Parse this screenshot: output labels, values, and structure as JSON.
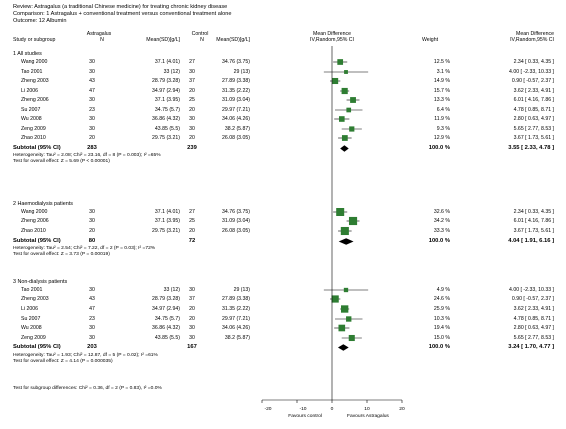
{
  "meta": {
    "review": "Review:   Astragalus (a traditional Chinese medicine) for treating chronic kidney disease",
    "comparison": "Comparison:   1 Astragalus + conventional treatment versus conventional treatment alone",
    "outcome": "Outcome:   12 Albumin"
  },
  "header": {
    "study": "Study or subgroup",
    "exp_group": "Astragalus",
    "ctl_group": "Control",
    "n": "N",
    "meansd": "Mean(SD)[g/L]",
    "md_line1": "Mean Difference",
    "md_line2": "IV,Random,95% CI",
    "weight": "Weight",
    "md2_line1": "Mean Difference",
    "md2_line2": "IV,Random,95% CI"
  },
  "axis": {
    "ticks": [
      "-20",
      "-10",
      "0",
      "10",
      "20"
    ],
    "left_label": "Favours control",
    "right_label": "Favours Astragalus"
  },
  "overall_note": "Test for subgroup differences: Chi² = 0.36, df = 2 (P = 0.83), I² =0.0%",
  "colors": {
    "square": "#2e7d32",
    "diamond": "#000000"
  },
  "chart_data": {
    "type": "forest",
    "xlim": [
      -20,
      20
    ],
    "subgroups": [
      {
        "title": "1 All studies",
        "studies": [
          {
            "name": "Wang 2000",
            "n1": "30",
            "ms1": "37.1 (4.01)",
            "n2": "27",
            "ms2": "34.76 (3.75)",
            "weight": "12.5 %",
            "ci": "2.34 [ 0.33, 4.35 ]",
            "md": 2.34,
            "lo": 0.33,
            "hi": 4.35
          },
          {
            "name": "Tao 2001",
            "n1": "30",
            "ms1": "33 (12)",
            "n2": "30",
            "ms2": "29 (13)",
            "weight": "3.1 %",
            "ci": "4.00 [ -2.33, 10.33 ]",
            "md": 4.0,
            "lo": -2.33,
            "hi": 10.33
          },
          {
            "name": "Zheng 2003",
            "n1": "43",
            "ms1": "28.79 (3.28)",
            "n2": "37",
            "ms2": "27.89 (3.38)",
            "weight": "14.9 %",
            "ci": "0.90 [ -0.57, 2.37 ]",
            "md": 0.9,
            "lo": -0.57,
            "hi": 2.37
          },
          {
            "name": "Li 2006",
            "n1": "47",
            "ms1": "34.97 (2.94)",
            "n2": "20",
            "ms2": "31.35 (2.22)",
            "weight": "15.7 %",
            "ci": "3.62 [ 2.33, 4.91 ]",
            "md": 3.62,
            "lo": 2.33,
            "hi": 4.91
          },
          {
            "name": "Zheng 2006",
            "n1": "30",
            "ms1": "37.1 (3.95)",
            "n2": "25",
            "ms2": "31.09 (3.04)",
            "weight": "13.3 %",
            "ci": "6.01 [ 4.16, 7.86 ]",
            "md": 6.01,
            "lo": 4.16,
            "hi": 7.86
          },
          {
            "name": "Su 2007",
            "n1": "23",
            "ms1": "34.75 (5.7)",
            "n2": "20",
            "ms2": "29.97 (7.21)",
            "weight": "6.4 %",
            "ci": "4.78 [ 0.85, 8.71 ]",
            "md": 4.78,
            "lo": 0.85,
            "hi": 8.71
          },
          {
            "name": "Wu 2008",
            "n1": "30",
            "ms1": "36.86 (4.32)",
            "n2": "30",
            "ms2": "34.06 (4.26)",
            "weight": "11.9 %",
            "ci": "2.80 [ 0.63, 4.97 ]",
            "md": 2.8,
            "lo": 0.63,
            "hi": 4.97
          },
          {
            "name": "Zeng 2009",
            "n1": "30",
            "ms1": "43.85 (5.5)",
            "n2": "30",
            "ms2": "38.2 (5.87)",
            "weight": "9.3 %",
            "ci": "5.65 [ 2.77, 8.53 ]",
            "md": 5.65,
            "lo": 2.77,
            "hi": 8.53
          },
          {
            "name": "Zhao 2010",
            "n1": "20",
            "ms1": "29.75 (3.21)",
            "n2": "20",
            "ms2": "26.08 (3.05)",
            "weight": "12.9 %",
            "ci": "3.67 [ 1.73, 5.61 ]",
            "md": 3.67,
            "lo": 1.73,
            "hi": 5.61
          }
        ],
        "subtotal": {
          "label": "Subtotal (95% CI)",
          "n1": "283",
          "n2": "239",
          "weight": "100.0 %",
          "ci": "3.55 [ 2.33, 4.78 ]",
          "md": 3.55,
          "lo": 2.33,
          "hi": 4.78
        },
        "het": "Heterogeneity: Tau² = 2.08; Chi² = 23.16, df = 8 (P = 0.003); I² =65%",
        "test": "Test for overall effect: Z = 5.69 (P < 0.00001)"
      },
      {
        "title": "2 Haemodialysis patients",
        "studies": [
          {
            "name": "Wang 2000",
            "n1": "30",
            "ms1": "37.1 (4.01)",
            "n2": "27",
            "ms2": "34.76 (3.75)",
            "weight": "32.6 %",
            "ci": "2.34 [ 0.33, 4.35 ]",
            "md": 2.34,
            "lo": 0.33,
            "hi": 4.35
          },
          {
            "name": "Zheng 2006",
            "n1": "30",
            "ms1": "37.1 (3.95)",
            "n2": "25",
            "ms2": "31.09 (3.04)",
            "weight": "34.2 %",
            "ci": "6.01 [ 4.16, 7.86 ]",
            "md": 6.01,
            "lo": 4.16,
            "hi": 7.86
          },
          {
            "name": "Zhao 2010",
            "n1": "20",
            "ms1": "29.75 (3.21)",
            "n2": "20",
            "ms2": "26.08 (3.05)",
            "weight": "33.3 %",
            "ci": "3.67 [ 1.73, 5.61 ]",
            "md": 3.67,
            "lo": 1.73,
            "hi": 5.61
          }
        ],
        "subtotal": {
          "label": "Subtotal (95% CI)",
          "n1": "80",
          "n2": "72",
          "weight": "100.0 %",
          "ci": "4.04 [ 1.91, 6.16 ]",
          "md": 4.04,
          "lo": 1.91,
          "hi": 6.16
        },
        "het": "Heterogeneity: Tau² = 2.54; Chi² = 7.22, df = 2 (P = 0.03); I² =72%",
        "test": "Test for overall effect: Z = 3.73 (P = 0.00019)"
      },
      {
        "title": "3 Non-dialysis patients",
        "studies": [
          {
            "name": "Tao 2001",
            "n1": "30",
            "ms1": "33 (12)",
            "n2": "30",
            "ms2": "29 (13)",
            "weight": "4.9 %",
            "ci": "4.00 [ -2.33, 10.33 ]",
            "md": 4.0,
            "lo": -2.33,
            "hi": 10.33
          },
          {
            "name": "Zheng 2003",
            "n1": "43",
            "ms1": "28.79 (3.28)",
            "n2": "37",
            "ms2": "27.89 (3.38)",
            "weight": "24.6 %",
            "ci": "0.90 [ -0.57, 2.37 ]",
            "md": 0.9,
            "lo": -0.57,
            "hi": 2.37
          },
          {
            "name": "Li 2006",
            "n1": "47",
            "ms1": "34.97 (2.94)",
            "n2": "20",
            "ms2": "31.35 (2.22)",
            "weight": "25.9 %",
            "ci": "3.62 [ 2.33, 4.91 ]",
            "md": 3.62,
            "lo": 2.33,
            "hi": 4.91
          },
          {
            "name": "Su 2007",
            "n1": "23",
            "ms1": "34.75 (5.7)",
            "n2": "20",
            "ms2": "29.97 (7.21)",
            "weight": "10.3 %",
            "ci": "4.78 [ 0.85, 8.71 ]",
            "md": 4.78,
            "lo": 0.85,
            "hi": 8.71
          },
          {
            "name": "Wu 2008",
            "n1": "30",
            "ms1": "36.86 (4.32)",
            "n2": "30",
            "ms2": "34.06 (4.26)",
            "weight": "19.4 %",
            "ci": "2.80 [ 0.63, 4.97 ]",
            "md": 2.8,
            "lo": 0.63,
            "hi": 4.97
          },
          {
            "name": "Zeng 2009",
            "n1": "30",
            "ms1": "43.85 (5.5)",
            "n2": "30",
            "ms2": "38.2 (5.87)",
            "weight": "15.0 %",
            "ci": "5.65 [ 2.77, 8.53 ]",
            "md": 5.65,
            "lo": 2.77,
            "hi": 8.53
          }
        ],
        "subtotal": {
          "label": "Subtotal (95% CI)",
          "n1": "203",
          "n2": "167",
          "weight": "100.0 %",
          "ci": "3.24 [ 1.70, 4.77 ]",
          "md": 3.24,
          "lo": 1.7,
          "hi": 4.77
        },
        "het": "Heterogeneity: Tau² = 1.93; Chi² = 12.87, df = 5 (P = 0.02); I² =61%",
        "test": "Test for overall effect: Z = 4.14 (P = 0.000035)"
      }
    ]
  }
}
